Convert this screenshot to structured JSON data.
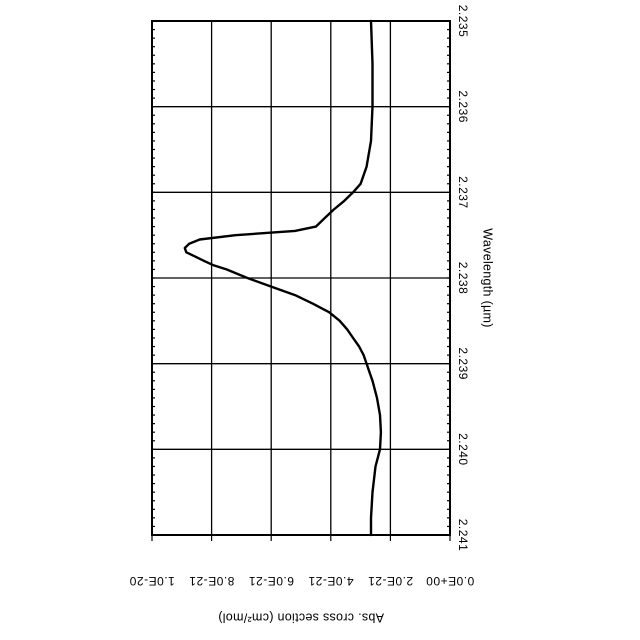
{
  "chart_data": {
    "type": "line",
    "orientation": "rotated-90-clockwise",
    "xlabel": "Wavelength (µm)",
    "ylabel": "Abs. cross section (cm²/mol)",
    "xlim": [
      2.235,
      2.241
    ],
    "ylim": [
      0.0,
      1e-20
    ],
    "x_ticks": [
      2.235,
      2.236,
      2.237,
      2.238,
      2.239,
      2.24,
      2.241
    ],
    "x_tick_labels": [
      "2.235",
      "2.236",
      "2.237",
      "2.238",
      "2.239",
      "2.240",
      "2.241"
    ],
    "y_ticks": [
      0.0,
      2e-21,
      4e-21,
      6e-21,
      8e-21,
      1e-20
    ],
    "y_tick_labels": [
      "0.0E+00",
      "2.0E-21",
      "4.0E-21",
      "6.0E-21",
      "8.0E-21",
      "1.0E-20"
    ],
    "grid": true,
    "series": [
      {
        "x": [
          2.235,
          2.2355,
          2.236,
          2.2364,
          2.2367,
          2.2369,
          2.237,
          2.2371,
          2.2372,
          2.2373,
          2.2374,
          2.23745,
          2.2375,
          2.23755,
          2.2376,
          2.23765,
          2.2377,
          2.23775,
          2.2378,
          2.23785,
          2.2379,
          2.238,
          2.2381,
          2.2382,
          2.2383,
          2.2384,
          2.2385,
          2.2386,
          2.2387,
          2.2388,
          2.2389,
          2.239,
          2.2391,
          2.2392,
          2.2394,
          2.2396,
          2.2398,
          2.24,
          2.2402,
          2.2405,
          2.2408,
          2.241
        ],
        "y": [
          2.65e-21,
          2.6e-21,
          2.6e-21,
          2.65e-21,
          2.8e-21,
          3e-21,
          3.25e-21,
          3.55e-21,
          3.9e-21,
          4.2e-21,
          4.5e-21,
          5.2e-21,
          7.2e-21,
          8.4e-21,
          8.75e-21,
          8.9e-21,
          8.85e-21,
          8.55e-21,
          8.25e-21,
          7.95e-21,
          7.5e-21,
          6.8e-21,
          6e-21,
          5.2e-21,
          4.6e-21,
          4.05e-21,
          3.7e-21,
          3.45e-21,
          3.25e-21,
          3.05e-21,
          2.9e-21,
          2.8e-21,
          2.7e-21,
          2.6e-21,
          2.45e-21,
          2.35e-21,
          2.32e-21,
          2.35e-21,
          2.5e-21,
          2.6e-21,
          2.65e-21,
          2.65e-21
        ]
      }
    ]
  }
}
